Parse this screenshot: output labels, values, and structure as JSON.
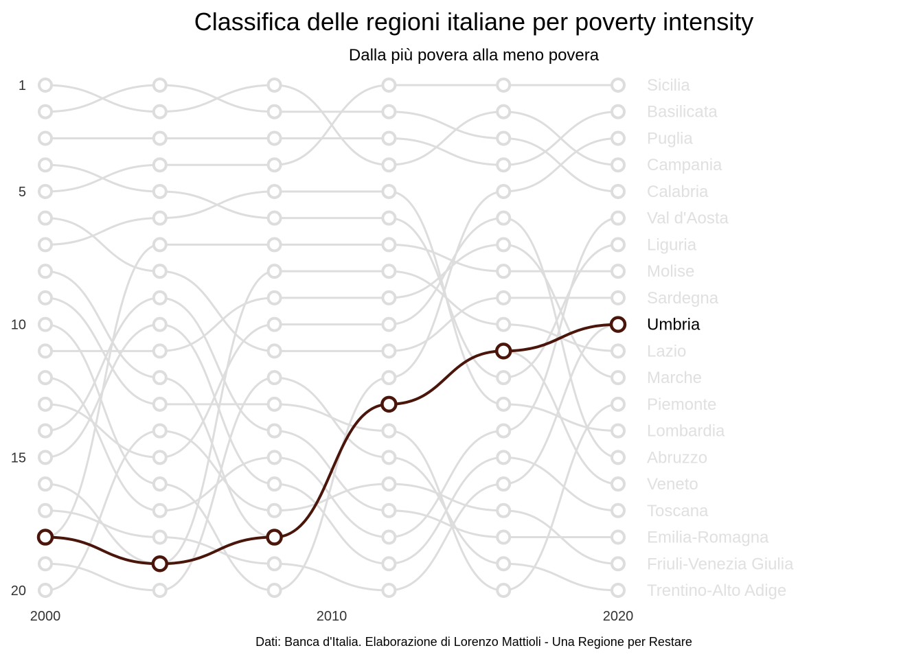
{
  "chart_data": {
    "type": "bump",
    "title": "Classifica delle regioni italiane per poverty intensity",
    "subtitle": "Dalla più povera alla meno povera",
    "caption": "Dati: Banca d'Italia. Elaborazione di Lorenzo Mattioli - Una Regione per Restare",
    "x": [
      2000,
      2004,
      2008,
      2012,
      2016,
      2020
    ],
    "x_ticks": [
      "2000",
      "2010",
      "2020"
    ],
    "y_ticks": [
      "1",
      "5",
      "10",
      "15",
      "20"
    ],
    "y_range": [
      1,
      20
    ],
    "y_reversed": true,
    "grid": false,
    "highlight": "Umbria",
    "colors": {
      "highlight": "#4a150a",
      "other": "#dddddd",
      "label_other": "#e0e0e0",
      "label_highlight": "#000000"
    },
    "regions": [
      "Sicilia",
      "Basilicata",
      "Puglia",
      "Campania",
      "Calabria",
      "Val d'Aosta",
      "Liguria",
      "Molise",
      "Sardegna",
      "Umbria",
      "Lazio",
      "Marche",
      "Piemonte",
      "Lombardia",
      "Abruzzo",
      "Veneto",
      "Toscana",
      "Emilia-Romagna",
      "Friuli-Venezia Giulia",
      "Trentino-Alto Adige"
    ],
    "transitions": [
      [
        2,
        1,
        3,
        5,
        4,
        8,
        6,
        12,
        13,
        16,
        11,
        17,
        15,
        9,
        10,
        19,
        18,
        7,
        20,
        14
      ],
      [
        2,
        1,
        3,
        4,
        6,
        5,
        7,
        11,
        14,
        16,
        9,
        18,
        13,
        17,
        10,
        20,
        15,
        19,
        8,
        12
      ],
      [
        4,
        2,
        3,
        1,
        5,
        6,
        7,
        8,
        9,
        10,
        11,
        15,
        14,
        17,
        18,
        19,
        16,
        13,
        20,
        12
      ],
      [
        1,
        3,
        4,
        2,
        13,
        12,
        8,
        10,
        7,
        6,
        9,
        5,
        11,
        20,
        19,
        17,
        18,
        14,
        15,
        16
      ],
      [
        1,
        4,
        5,
        2,
        3,
        15,
        12,
        8,
        9,
        11,
        16,
        7,
        14,
        6,
        17,
        10,
        19,
        18,
        20,
        13
      ]
    ],
    "umbria_ranks": [
      18,
      19,
      18,
      13,
      11,
      10
    ]
  }
}
